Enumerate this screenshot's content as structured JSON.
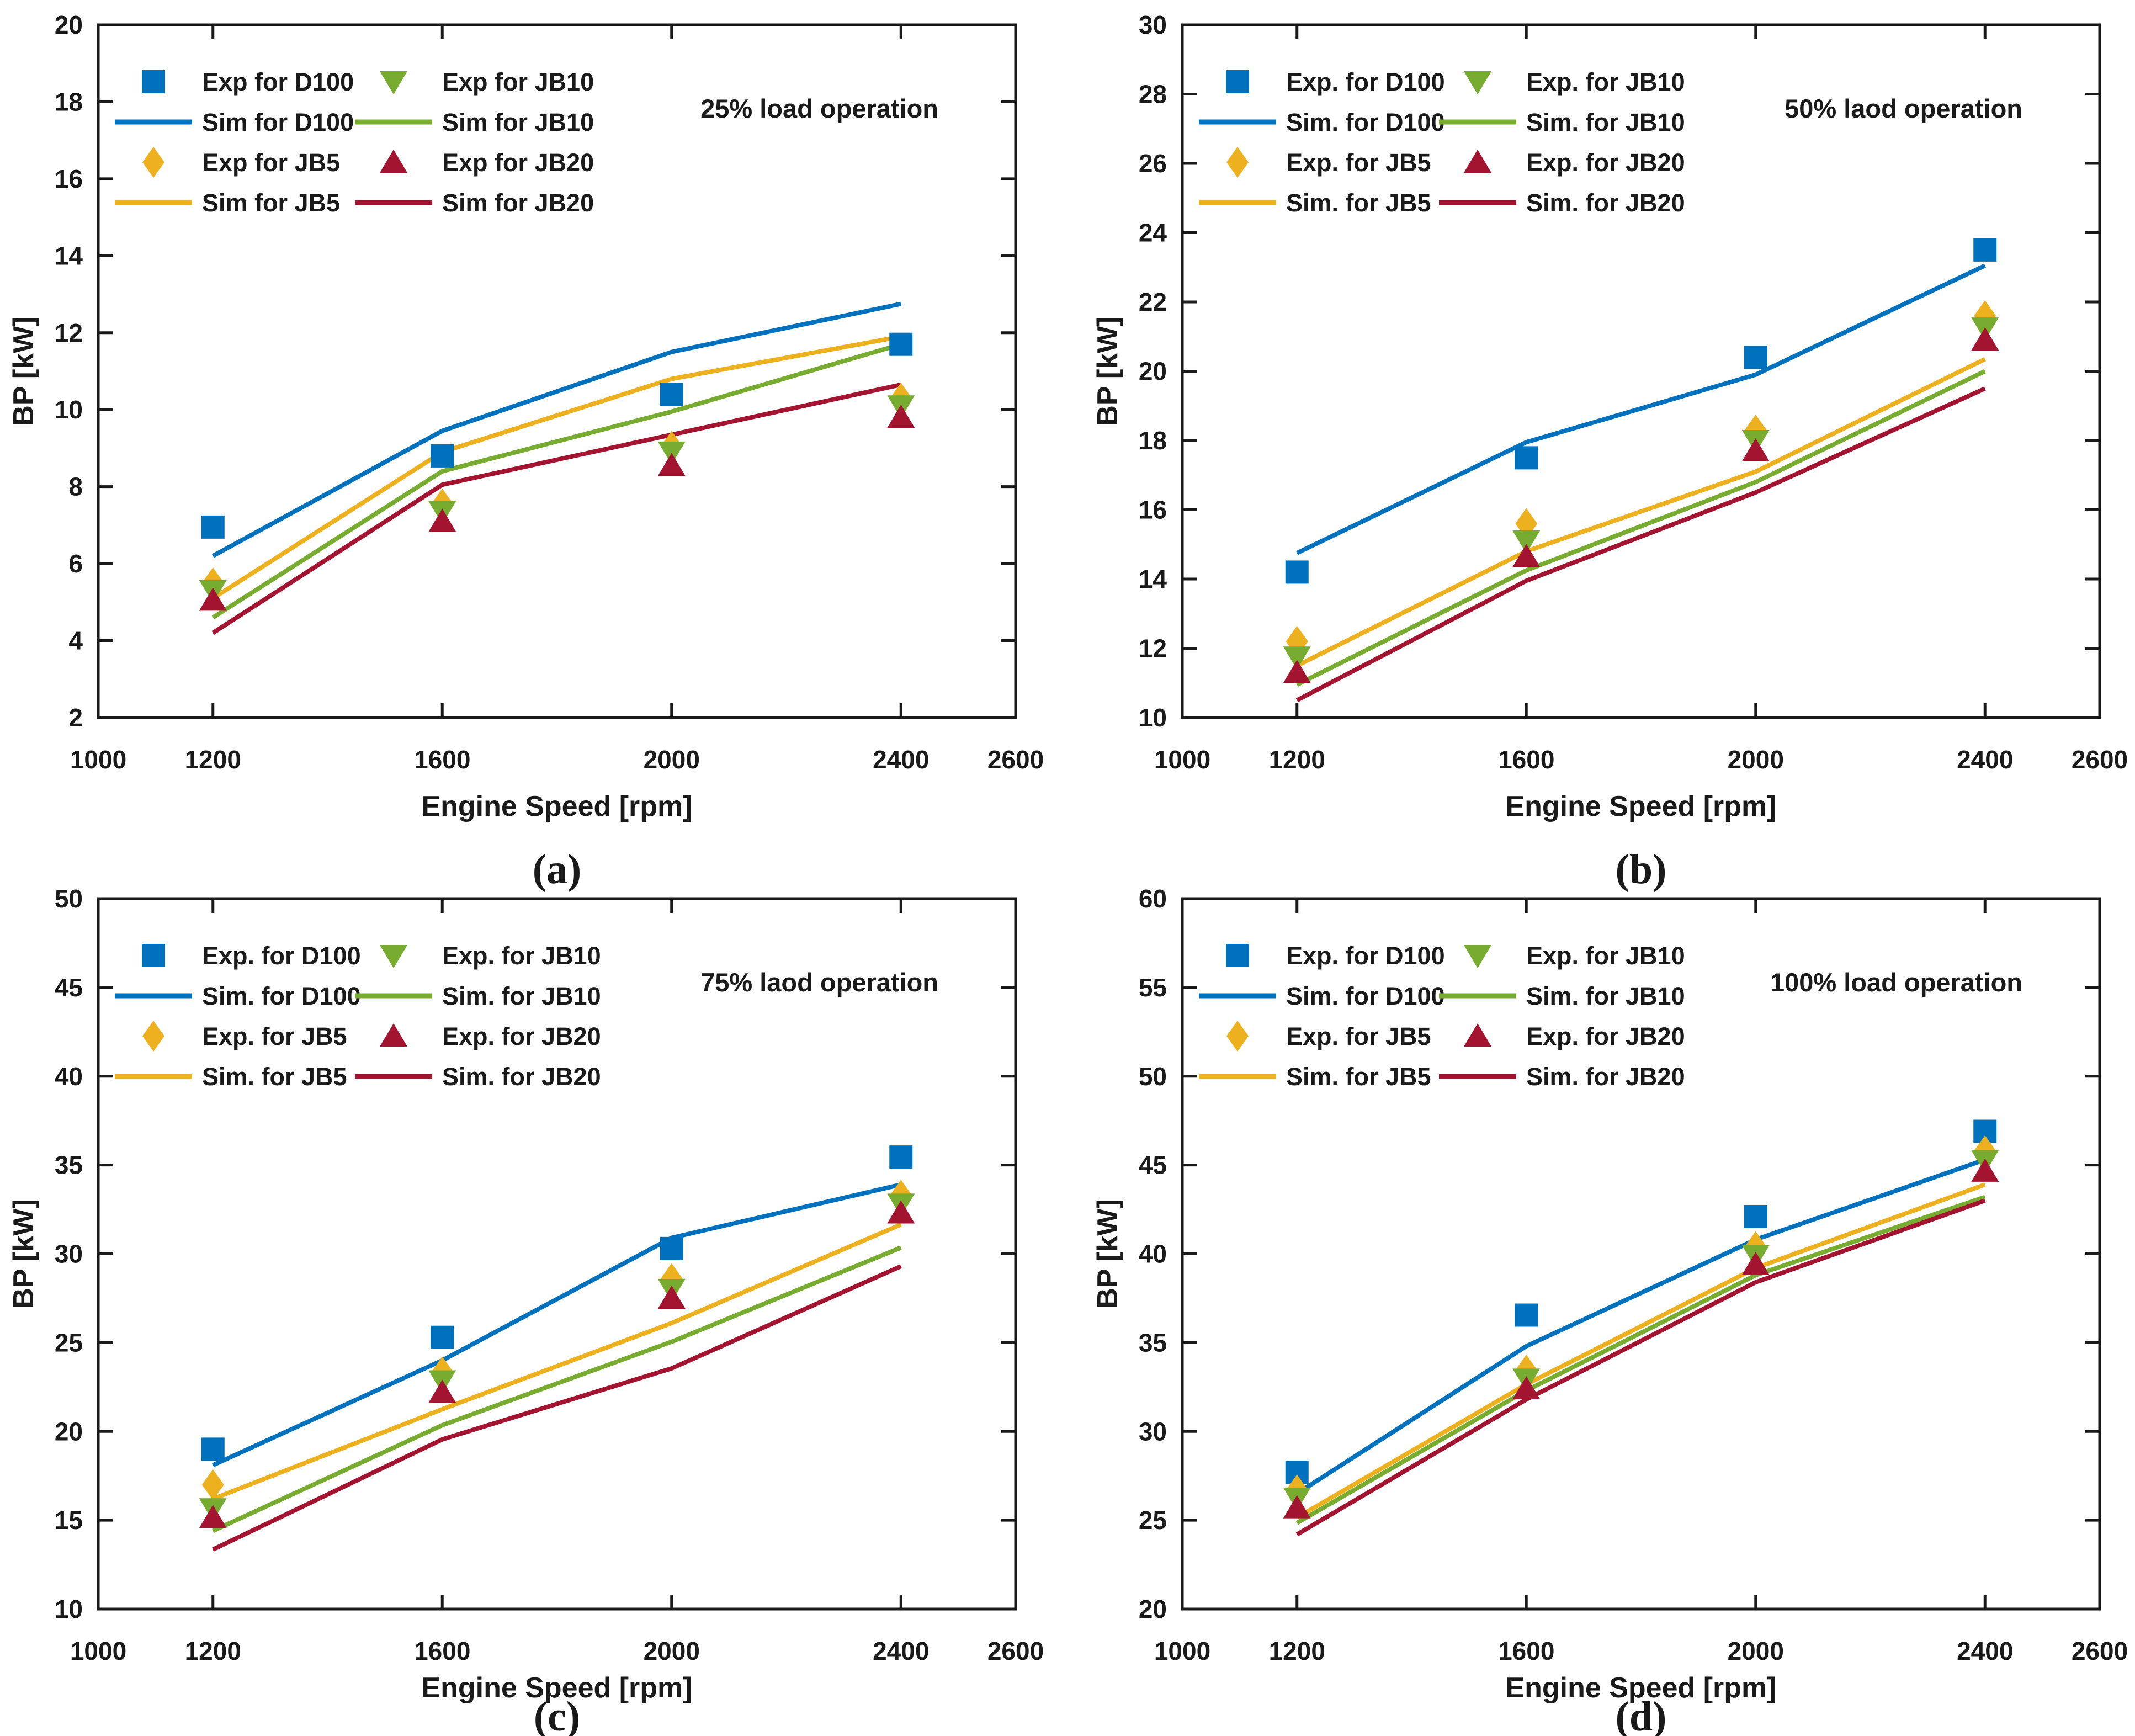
{
  "figure": {
    "background": "#ffffff",
    "axis_color": "#1a1a1a",
    "x_axis_label": "Engine Speed [rpm]",
    "y_axis_label": "BP [kW]",
    "x_tick_labels": [
      "1000",
      "1200",
      "1600",
      "2000",
      "2400",
      "2600"
    ],
    "series_colors": {
      "D100": "#0072BD",
      "JB5": "#EDB120",
      "JB10": "#77AC30",
      "JB20": "#A2142F"
    }
  },
  "chart_data": [
    {
      "id": "a",
      "type": "line",
      "panel_label": "(a)",
      "title": "25% load operation",
      "xlabel": "Engine Speed [rpm]",
      "ylabel": "BP [kW]",
      "xlim": [
        1000,
        2600
      ],
      "ylim": [
        2,
        20
      ],
      "ytick_step": 2,
      "xticks": [
        1200,
        1600,
        2000,
        2400
      ],
      "x": [
        1200,
        1600,
        2000,
        2400
      ],
      "legend_position": "top-left",
      "grid": false,
      "series": [
        {
          "name": "Exp for D100",
          "fuel": "D100",
          "kind": "exp",
          "style": "marker",
          "marker": "square",
          "color": "#0072BD",
          "values": [
            6.95,
            8.8,
            10.4,
            11.7
          ]
        },
        {
          "name": "Sim for D100",
          "fuel": "D100",
          "kind": "sim",
          "style": "line",
          "marker": "none",
          "color": "#0072BD",
          "values": [
            6.2,
            9.45,
            11.5,
            12.75
          ]
        },
        {
          "name": "Exp for JB5",
          "fuel": "JB5",
          "kind": "exp",
          "style": "marker",
          "marker": "diamond",
          "color": "#EDB120",
          "values": [
            5.5,
            7.55,
            9.05,
            10.3
          ]
        },
        {
          "name": "Sim for JB5",
          "fuel": "JB5",
          "kind": "sim",
          "style": "line",
          "marker": "none",
          "color": "#EDB120",
          "values": [
            5.1,
            8.9,
            10.8,
            11.9
          ]
        },
        {
          "name": "Exp for JB10",
          "fuel": "JB10",
          "kind": "exp",
          "style": "marker",
          "marker": "triangle-down",
          "color": "#77AC30",
          "values": [
            5.3,
            7.35,
            8.9,
            10.1
          ]
        },
        {
          "name": "Sim for JB10",
          "fuel": "JB10",
          "kind": "sim",
          "style": "line",
          "marker": "none",
          "color": "#77AC30",
          "values": [
            4.6,
            8.4,
            9.95,
            11.7
          ]
        },
        {
          "name": "Exp for JB20",
          "fuel": "JB20",
          "kind": "exp",
          "style": "marker",
          "marker": "triangle-up",
          "color": "#A2142F",
          "values": [
            5.05,
            7.1,
            8.55,
            9.8
          ]
        },
        {
          "name": "Sim for JB20",
          "fuel": "JB20",
          "kind": "sim",
          "style": "line",
          "marker": "none",
          "color": "#A2142F",
          "values": [
            4.2,
            8.05,
            9.35,
            10.65
          ]
        }
      ]
    },
    {
      "id": "b",
      "type": "line",
      "panel_label": "(b)",
      "title": "50% laod operation",
      "xlabel": "Engine Speed [rpm]",
      "ylabel": "BP [kW]",
      "xlim": [
        1000,
        2600
      ],
      "ylim": [
        10,
        30
      ],
      "ytick_step": 2,
      "xticks": [
        1200,
        1600,
        2000,
        2400
      ],
      "x": [
        1200,
        1600,
        2000,
        2400
      ],
      "legend_position": "top-left",
      "grid": false,
      "series": [
        {
          "name": "Exp. for D100",
          "fuel": "D100",
          "kind": "exp",
          "style": "marker",
          "marker": "square",
          "color": "#0072BD",
          "values": [
            14.2,
            17.5,
            20.4,
            23.5
          ]
        },
        {
          "name": "Sim. for D100",
          "fuel": "D100",
          "kind": "sim",
          "style": "line",
          "marker": "none",
          "color": "#0072BD",
          "values": [
            14.75,
            17.95,
            19.9,
            23.05
          ]
        },
        {
          "name": "Exp. for JB5",
          "fuel": "JB5",
          "kind": "exp",
          "style": "marker",
          "marker": "diamond",
          "color": "#EDB120",
          "values": [
            12.2,
            15.6,
            18.3,
            21.6
          ]
        },
        {
          "name": "Sim. for JB5",
          "fuel": "JB5",
          "kind": "sim",
          "style": "line",
          "marker": "none",
          "color": "#EDB120",
          "values": [
            11.5,
            14.8,
            17.1,
            20.35
          ]
        },
        {
          "name": "Exp. for JB10",
          "fuel": "JB10",
          "kind": "exp",
          "style": "marker",
          "marker": "triangle-down",
          "color": "#77AC30",
          "values": [
            11.75,
            15.1,
            18.0,
            21.25
          ]
        },
        {
          "name": "Sim. for JB10",
          "fuel": "JB10",
          "kind": "sim",
          "style": "line",
          "marker": "none",
          "color": "#77AC30",
          "values": [
            10.95,
            14.25,
            16.8,
            20.0
          ]
        },
        {
          "name": "Exp. for JB20",
          "fuel": "JB20",
          "kind": "exp",
          "style": "marker",
          "marker": "triangle-up",
          "color": "#A2142F",
          "values": [
            11.3,
            14.65,
            17.7,
            20.9
          ]
        },
        {
          "name": "Sim. for JB20",
          "fuel": "JB20",
          "kind": "sim",
          "style": "line",
          "marker": "none",
          "color": "#A2142F",
          "values": [
            10.5,
            13.95,
            16.5,
            19.5
          ]
        }
      ]
    },
    {
      "id": "c",
      "type": "line",
      "panel_label": "(c)",
      "title": "75% laod operation",
      "xlabel": "Engine Speed [rpm]",
      "ylabel": "BP [kW]",
      "xlim": [
        1000,
        2600
      ],
      "ylim": [
        10,
        50
      ],
      "ytick_step": 5,
      "xticks": [
        1200,
        1600,
        2000,
        2400
      ],
      "x": [
        1200,
        1600,
        2000,
        2400
      ],
      "legend_position": "top-left",
      "grid": false,
      "series": [
        {
          "name": "Exp. for D100",
          "fuel": "D100",
          "kind": "exp",
          "style": "marker",
          "marker": "square",
          "color": "#0072BD",
          "values": [
            19.0,
            25.3,
            30.3,
            35.45
          ]
        },
        {
          "name": "Sim. for D100",
          "fuel": "D100",
          "kind": "sim",
          "style": "line",
          "marker": "none",
          "color": "#0072BD",
          "values": [
            18.1,
            24.0,
            30.9,
            33.9
          ]
        },
        {
          "name": "Exp. for JB5",
          "fuel": "JB5",
          "kind": "exp",
          "style": "marker",
          "marker": "diamond",
          "color": "#EDB120",
          "values": [
            17.0,
            23.35,
            28.6,
            33.3
          ]
        },
        {
          "name": "Sim. for JB5",
          "fuel": "JB5",
          "kind": "sim",
          "style": "line",
          "marker": "none",
          "color": "#EDB120",
          "values": [
            16.2,
            21.25,
            26.1,
            31.65
          ]
        },
        {
          "name": "Exp. for JB10",
          "fuel": "JB10",
          "kind": "exp",
          "style": "marker",
          "marker": "triangle-down",
          "color": "#77AC30",
          "values": [
            15.65,
            22.85,
            28.0,
            32.8
          ]
        },
        {
          "name": "Sim. for JB10",
          "fuel": "JB10",
          "kind": "sim",
          "style": "line",
          "marker": "none",
          "color": "#77AC30",
          "values": [
            14.4,
            20.35,
            25.05,
            30.35
          ]
        },
        {
          "name": "Exp. for JB20",
          "fuel": "JB20",
          "kind": "exp",
          "style": "marker",
          "marker": "triangle-up",
          "color": "#A2142F",
          "values": [
            15.15,
            22.2,
            27.5,
            32.3
          ]
        },
        {
          "name": "Sim. for JB20",
          "fuel": "JB20",
          "kind": "sim",
          "style": "line",
          "marker": "none",
          "color": "#A2142F",
          "values": [
            13.35,
            19.55,
            23.55,
            29.3
          ]
        }
      ]
    },
    {
      "id": "d",
      "type": "line",
      "panel_label": "(d)",
      "title": "100% load operation",
      "xlabel": "Engine Speed [rpm]",
      "ylabel": "BP [kW]",
      "xlim": [
        1000,
        2600
      ],
      "ylim": [
        20,
        60
      ],
      "ytick_step": 5,
      "xticks": [
        1200,
        1600,
        2000,
        2400
      ],
      "x": [
        1200,
        1600,
        2000,
        2400
      ],
      "legend_position": "top-left",
      "grid": false,
      "series": [
        {
          "name": "Exp. for D100",
          "fuel": "D100",
          "kind": "exp",
          "style": "marker",
          "marker": "square",
          "color": "#0072BD",
          "values": [
            27.7,
            36.55,
            42.1,
            46.9
          ]
        },
        {
          "name": "Sim. for D100",
          "fuel": "D100",
          "kind": "sim",
          "style": "line",
          "marker": "none",
          "color": "#0072BD",
          "values": [
            26.5,
            34.8,
            40.8,
            45.3
          ]
        },
        {
          "name": "Exp. for JB5",
          "fuel": "JB5",
          "kind": "exp",
          "style": "marker",
          "marker": "diamond",
          "color": "#EDB120",
          "values": [
            26.7,
            33.45,
            40.4,
            45.8
          ]
        },
        {
          "name": "Sim. for JB5",
          "fuel": "JB5",
          "kind": "sim",
          "style": "line",
          "marker": "none",
          "color": "#EDB120",
          "values": [
            25.15,
            32.65,
            39.2,
            43.9
          ]
        },
        {
          "name": "Exp. for JB10",
          "fuel": "JB10",
          "kind": "exp",
          "style": "marker",
          "marker": "triangle-down",
          "color": "#77AC30",
          "values": [
            26.25,
            32.95,
            39.9,
            45.25
          ]
        },
        {
          "name": "Sim. for JB10",
          "fuel": "JB10",
          "kind": "sim",
          "style": "line",
          "marker": "none",
          "color": "#77AC30",
          "values": [
            24.85,
            32.3,
            38.8,
            43.2
          ]
        },
        {
          "name": "Exp. for JB20",
          "fuel": "JB20",
          "kind": "exp",
          "style": "marker",
          "marker": "triangle-up",
          "color": "#A2142F",
          "values": [
            25.7,
            32.4,
            39.4,
            44.65
          ]
        },
        {
          "name": "Sim. for JB20",
          "fuel": "JB20",
          "kind": "sim",
          "style": "line",
          "marker": "none",
          "color": "#A2142F",
          "values": [
            24.2,
            31.8,
            38.4,
            43.0
          ]
        }
      ]
    }
  ]
}
